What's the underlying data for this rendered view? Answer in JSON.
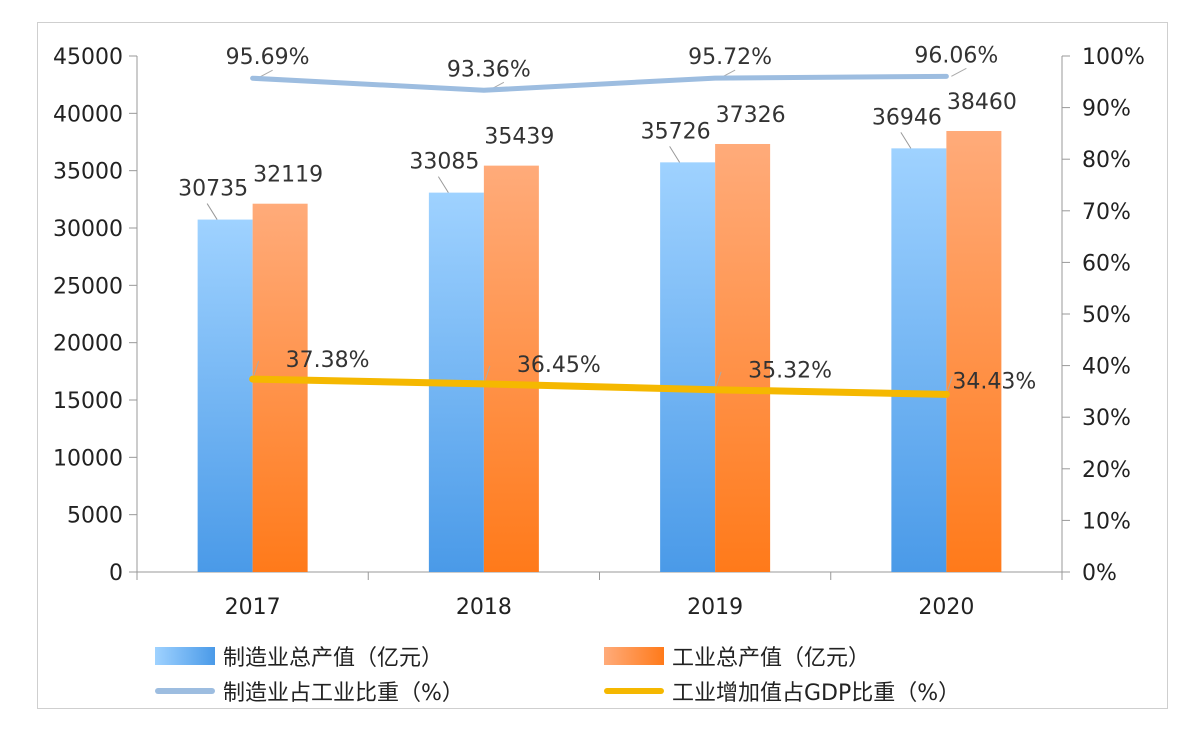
{
  "chart_data": {
    "type": "bar",
    "categories": [
      "2017",
      "2018",
      "2019",
      "2020"
    ],
    "y_left": {
      "range": [
        0,
        45000
      ],
      "ticks": [
        "0",
        "5000",
        "10000",
        "15000",
        "20000",
        "25000",
        "30000",
        "35000",
        "40000",
        "45000"
      ]
    },
    "y_right": {
      "range": [
        0,
        100
      ],
      "ticks": [
        "0%",
        "10%",
        "20%",
        "30%",
        "40%",
        "50%",
        "60%",
        "70%",
        "80%",
        "90%",
        "100%"
      ]
    },
    "series": [
      {
        "name": "制造业总产值（亿元）",
        "kind": "bar",
        "axis": "left",
        "values": [
          30735,
          33085,
          35726,
          36946
        ],
        "labels": [
          "30735",
          "33085",
          "35726",
          "36946"
        ],
        "color": "#64b0f0"
      },
      {
        "name": "工业总产值（亿元）",
        "kind": "bar",
        "axis": "left",
        "values": [
          32119,
          35439,
          37326,
          38460
        ],
        "labels": [
          "32119",
          "35439",
          "37326",
          "38460"
        ],
        "color": "#ff8a3d"
      },
      {
        "name": "制造业占工业比重（%）",
        "kind": "line",
        "axis": "right",
        "values": [
          95.69,
          93.36,
          95.72,
          96.06
        ],
        "labels": [
          "95.69%",
          "93.36%",
          "95.72%",
          "96.06%"
        ],
        "color": "#9dbde0"
      },
      {
        "name": "工业增加值占GDP比重（%）",
        "kind": "line",
        "axis": "right",
        "values": [
          37.38,
          36.45,
          35.32,
          34.43
        ],
        "labels": [
          "37.38%",
          "36.45%",
          "35.32%",
          "34.43%"
        ],
        "color": "#f5b800"
      }
    ],
    "grid": false,
    "legend": "bottom"
  }
}
